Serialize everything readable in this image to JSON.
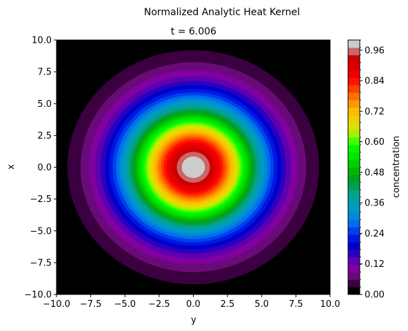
{
  "chart_data": {
    "type": "heatmap",
    "suptitle": "Normalized Analytic Heat Kernel",
    "title": "t = 6.006",
    "xlabel": "y",
    "ylabel": "x",
    "xlim": [
      -10,
      10
    ],
    "ylim": [
      -10,
      10
    ],
    "x_ticks": [
      "−10.0",
      "−7.5",
      "−5.0",
      "−2.5",
      "0.0",
      "2.5",
      "5.0",
      "7.5",
      "10.0"
    ],
    "y_ticks": [
      "10.0",
      "7.5",
      "5.0",
      "2.5",
      "0.0",
      "−2.5",
      "−5.0",
      "−7.5",
      "−10.0"
    ],
    "field": "exp(-r^2 / (4 t)), normalized to peak 1, filled contours",
    "t": 6.006,
    "colorbar": {
      "label": "concentration",
      "range": [
        0,
        1
      ],
      "levels": 34,
      "ticks": [
        "0.00",
        "0.12",
        "0.24",
        "0.36",
        "0.48",
        "0.60",
        "0.72",
        "0.84",
        "0.96"
      ],
      "colors": [
        "#000000",
        "#3a0040",
        "#6a0a78",
        "#8000a0",
        "#5e00b0",
        "#2a00c0",
        "#0000cc",
        "#0018e0",
        "#0040ee",
        "#0070e8",
        "#0088dd",
        "#0099c8",
        "#009fa8",
        "#00a488",
        "#00a050",
        "#00a020",
        "#00b800",
        "#00d000",
        "#00e600",
        "#00f800",
        "#40ff00",
        "#a8f000",
        "#d8e400",
        "#f0d000",
        "#ffbb00",
        "#ff9900",
        "#ff7000",
        "#ff4000",
        "#ff1000",
        "#ee0000",
        "#dd0000",
        "#cc0000",
        "#cc6666",
        "#cccccc"
      ]
    }
  }
}
